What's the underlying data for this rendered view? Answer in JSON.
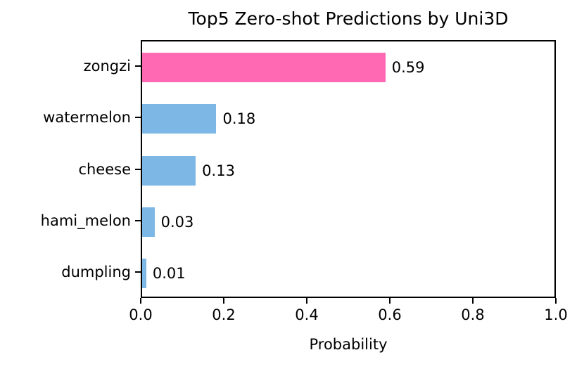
{
  "chart_data": {
    "type": "bar",
    "orientation": "horizontal",
    "title": "Top5 Zero-shot Predictions by Uni3D",
    "xlabel": "Probability",
    "ylabel": "",
    "categories": [
      "zongzi",
      "watermelon",
      "cheese",
      "hami_melon",
      "dumpling"
    ],
    "values": [
      0.59,
      0.18,
      0.13,
      0.03,
      0.01
    ],
    "value_labels": [
      "0.59",
      "0.18",
      "0.13",
      "0.03",
      "0.01"
    ],
    "bar_colors": [
      "#FF69B4",
      "#7CB7E5",
      "#7CB7E5",
      "#7CB7E5",
      "#7CB7E5"
    ],
    "highlight_color": "#FF69B4",
    "default_color": "#7CB7E5",
    "xlim": [
      0.0,
      1.0
    ],
    "x_ticks": [
      "0.0",
      "0.2",
      "0.4",
      "0.6",
      "0.8",
      "1.0"
    ],
    "grid": false,
    "legend": null,
    "axis_color": "#000000",
    "background_color": "#ffffff"
  }
}
